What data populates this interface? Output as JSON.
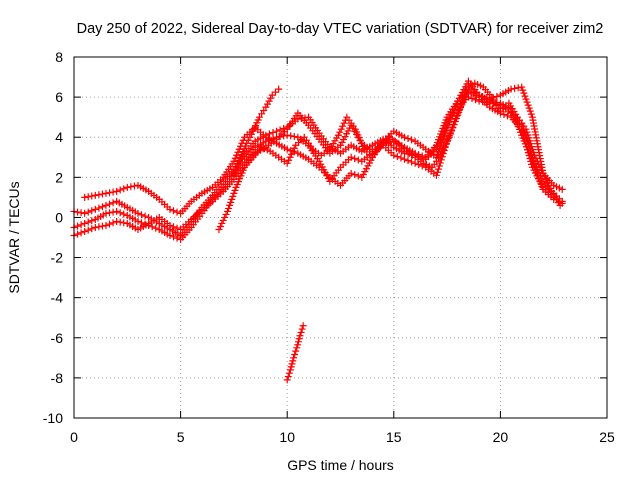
{
  "chart_data": {
    "type": "scatter",
    "title": "Day 250 of 2022, Sidereal Day-to-day VTEC variation (SDTVAR) for receiver zim2",
    "xlabel": "GPS time / hours",
    "ylabel": "SDTVAR / TECUs",
    "xlim": [
      0,
      25
    ],
    "ylim": [
      -10,
      8
    ],
    "xticks": [
      0,
      5,
      10,
      15,
      20,
      25
    ],
    "yticks": [
      -10,
      -8,
      -6,
      -4,
      -2,
      0,
      2,
      4,
      6,
      8
    ],
    "grid": true,
    "marker": "+",
    "color": "#ff0000",
    "series": [
      {
        "name": "track-a",
        "x": [
          0.0,
          0.5,
          1.0,
          1.5,
          2.0,
          2.5,
          3.0,
          3.5,
          4.0,
          4.5,
          5.0,
          5.5,
          6.0,
          6.5,
          7.0,
          7.5,
          8.0,
          8.5,
          9.0,
          9.5,
          10.0,
          10.5,
          11.0,
          11.5,
          12.0,
          12.5,
          13.0,
          13.5,
          14.0,
          14.5,
          15.0,
          15.5,
          16.0,
          16.5,
          17.0,
          17.5,
          18.0,
          18.5,
          19.0,
          19.5,
          20.0,
          20.5,
          21.0,
          21.5,
          22.0,
          22.5,
          22.9
        ],
        "y": [
          0.3,
          0.2,
          0.4,
          0.6,
          0.8,
          0.5,
          0.2,
          0.0,
          -0.3,
          -0.6,
          -0.9,
          -0.2,
          0.5,
          1.1,
          1.8,
          2.4,
          3.2,
          3.8,
          4.1,
          4.3,
          4.5,
          4.9,
          5.0,
          4.2,
          3.5,
          3.2,
          3.6,
          3.3,
          3.6,
          3.9,
          3.5,
          3.2,
          3.1,
          2.9,
          3.4,
          4.6,
          5.5,
          6.0,
          5.8,
          5.7,
          5.6,
          5.2,
          4.7,
          3.0,
          1.8,
          1.2,
          0.8
        ]
      },
      {
        "name": "track-b",
        "x": [
          0.0,
          0.5,
          1.0,
          1.5,
          2.0,
          2.5,
          3.0,
          3.5,
          4.0,
          4.5,
          5.0,
          5.5,
          6.0,
          6.5,
          7.0,
          7.5,
          8.0,
          8.5,
          9.0,
          9.5,
          10.0,
          10.5,
          11.0,
          11.5,
          12.0,
          12.5,
          13.0,
          13.5,
          14.0,
          14.5,
          15.0,
          15.5,
          16.0,
          16.5,
          17.0,
          17.5,
          18.0,
          18.5,
          19.0,
          19.5,
          20.0,
          20.5,
          21.0,
          21.5,
          22.0,
          22.5,
          22.9
        ],
        "y": [
          -0.5,
          -0.3,
          -0.1,
          0.2,
          0.3,
          0.1,
          -0.2,
          -0.4,
          -0.6,
          -0.9,
          -1.1,
          -0.5,
          0.2,
          0.9,
          1.5,
          2.2,
          2.9,
          3.5,
          3.8,
          4.0,
          4.1,
          4.0,
          3.6,
          2.8,
          1.8,
          2.5,
          3.0,
          2.8,
          3.2,
          3.6,
          3.1,
          2.9,
          2.7,
          2.5,
          2.1,
          3.8,
          5.2,
          6.3,
          6.0,
          5.5,
          5.2,
          5.0,
          4.4,
          2.5,
          1.5,
          1.0,
          0.7
        ]
      },
      {
        "name": "track-c",
        "x": [
          0.5,
          1.0,
          1.5,
          2.0,
          2.5,
          3.0,
          3.5,
          4.0,
          4.5,
          5.0,
          5.5,
          6.0,
          6.5,
          7.0,
          7.5,
          8.0,
          8.5,
          9.0,
          9.5,
          10.0,
          10.5,
          11.0,
          11.5,
          12.0,
          12.5,
          13.0,
          13.5,
          14.0,
          14.5,
          15.0,
          15.5,
          16.0,
          16.5,
          17.0,
          17.5,
          18.0,
          18.5,
          19.0,
          19.5,
          20.0,
          20.5,
          21.0,
          21.5,
          22.0,
          22.5,
          22.9
        ],
        "y": [
          1.0,
          1.1,
          1.2,
          1.3,
          1.5,
          1.6,
          1.3,
          0.9,
          0.4,
          0.2,
          0.8,
          1.2,
          1.5,
          2.0,
          2.8,
          4.0,
          4.5,
          4.0,
          3.7,
          3.4,
          3.2,
          2.9,
          2.5,
          2.0,
          1.6,
          2.2,
          2.0,
          3.0,
          3.8,
          4.3,
          4.0,
          3.8,
          3.4,
          3.0,
          4.5,
          5.8,
          6.8,
          6.1,
          5.9,
          6.1,
          6.4,
          6.5,
          5.0,
          2.2,
          1.6,
          1.4
        ]
      },
      {
        "name": "track-d",
        "x": [
          0.0,
          0.5,
          1.0,
          1.5,
          2.0,
          2.5,
          3.0,
          3.5,
          4.0,
          4.5,
          5.0,
          5.5,
          6.0,
          6.5,
          7.0,
          7.5,
          8.0,
          8.5,
          9.0,
          9.5,
          10.0,
          10.5,
          11.0,
          11.5,
          12.0,
          12.5,
          13.0,
          13.5,
          14.0,
          14.5,
          15.0,
          15.5,
          16.0,
          16.5,
          17.0,
          17.5,
          18.0,
          18.5,
          19.0,
          19.5,
          20.0,
          20.5,
          21.0,
          21.5,
          22.0,
          22.5
        ],
        "y": [
          -0.9,
          -0.7,
          -0.5,
          -0.4,
          -0.2,
          -0.3,
          -0.6,
          -0.3,
          0.0,
          -0.4,
          -0.6,
          -0.1,
          0.4,
          0.8,
          1.3,
          1.9,
          2.6,
          3.2,
          3.5,
          3.9,
          4.4,
          5.2,
          4.6,
          3.9,
          3.2,
          3.6,
          4.6,
          3.7,
          3.3,
          3.7,
          3.8,
          3.5,
          3.2,
          3.0,
          3.6,
          5.0,
          5.8,
          6.5,
          6.1,
          5.8,
          5.7,
          5.4,
          4.1,
          2.8,
          1.4,
          0.9
        ]
      },
      {
        "name": "track-e",
        "x": [
          6.8,
          7.2,
          7.6,
          8.0,
          8.4,
          8.8,
          9.2,
          9.6,
          10.0,
          10.4,
          10.8,
          11.2,
          11.6,
          12.0,
          12.4,
          12.8,
          13.2,
          13.6,
          14.0,
          14.4,
          14.8,
          15.2,
          15.6,
          16.0,
          16.4,
          16.8,
          17.2,
          17.6,
          18.0,
          18.4,
          18.8,
          19.2,
          19.6,
          20.0,
          20.4,
          20.8,
          21.2,
          21.6,
          22.0,
          22.4,
          22.8
        ],
        "y": [
          -0.6,
          0.3,
          1.5,
          2.5,
          3.0,
          3.5,
          3.3,
          3.0,
          2.7,
          3.6,
          4.0,
          3.4,
          3.1,
          3.4,
          4.1,
          5.0,
          4.4,
          3.4,
          3.0,
          3.6,
          4.0,
          3.7,
          3.3,
          3.0,
          2.7,
          2.5,
          3.1,
          4.0,
          5.1,
          6.4,
          6.7,
          6.5,
          6.0,
          5.3,
          5.7,
          5.0,
          4.4,
          3.1,
          2.2,
          1.3,
          0.6
        ]
      },
      {
        "name": "track-f",
        "x": [
          7.5,
          7.8,
          8.1,
          8.4,
          8.7,
          9.0,
          9.3,
          9.6
        ],
        "y": [
          2.1,
          3.0,
          3.7,
          4.3,
          5.0,
          5.5,
          6.1,
          6.4
        ]
      },
      {
        "name": "track-g",
        "x": [
          10.0,
          10.15,
          10.3,
          10.45,
          10.6,
          10.75
        ],
        "y": [
          -8.1,
          -7.6,
          -7.0,
          -6.5,
          -5.9,
          -5.4
        ]
      }
    ]
  }
}
